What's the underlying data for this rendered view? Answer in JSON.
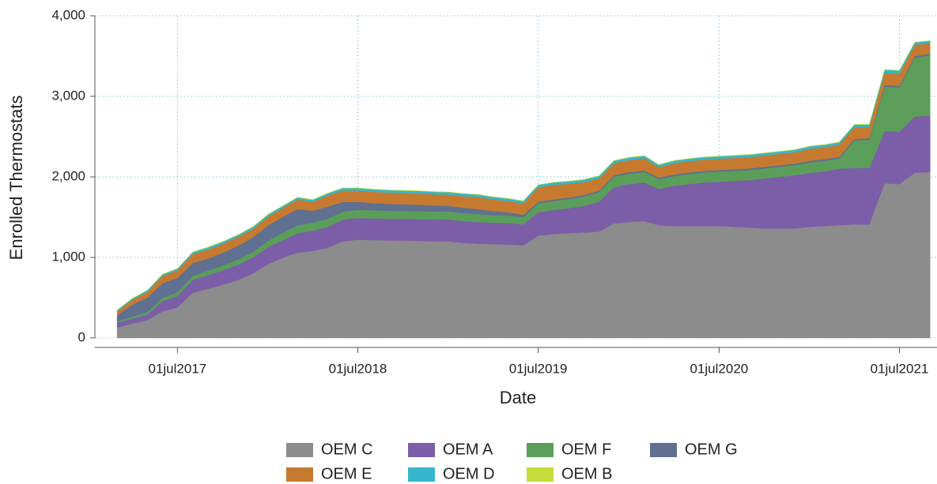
{
  "chart_data": {
    "type": "stacked-area",
    "x_label": "Date",
    "y_label": "Enrolled Thermostats",
    "x": [
      "2017-03-01",
      "2017-04-01",
      "2017-05-01",
      "2017-06-01",
      "2017-07-01",
      "2017-08-01",
      "2017-09-01",
      "2017-10-01",
      "2017-11-01",
      "2017-12-01",
      "2018-01-01",
      "2018-02-01",
      "2018-03-01",
      "2018-04-01",
      "2018-05-01",
      "2018-06-01",
      "2018-07-01",
      "2018-08-01",
      "2018-09-01",
      "2018-10-01",
      "2018-11-01",
      "2018-12-01",
      "2019-01-01",
      "2019-02-01",
      "2019-03-01",
      "2019-04-01",
      "2019-05-01",
      "2019-06-01",
      "2019-07-01",
      "2019-08-01",
      "2019-09-01",
      "2019-10-01",
      "2019-11-01",
      "2019-12-01",
      "2020-01-01",
      "2020-02-01",
      "2020-03-01",
      "2020-04-01",
      "2020-05-01",
      "2020-06-01",
      "2020-07-01",
      "2020-08-01",
      "2020-09-01",
      "2020-10-01",
      "2020-11-01",
      "2020-12-01",
      "2021-01-01",
      "2021-02-01",
      "2021-03-01",
      "2021-04-01",
      "2021-05-01",
      "2021-06-01",
      "2021-07-01",
      "2021-08-01",
      "2021-09-01"
    ],
    "series": [
      {
        "name": "OEM C",
        "color": "#8c8c8c",
        "values": [
          130,
          180,
          220,
          330,
          380,
          560,
          610,
          660,
          720,
          800,
          920,
          1000,
          1060,
          1080,
          1120,
          1200,
          1220,
          1215,
          1210,
          1210,
          1205,
          1200,
          1200,
          1180,
          1170,
          1165,
          1160,
          1150,
          1270,
          1290,
          1300,
          1310,
          1320,
          1420,
          1440,
          1450,
          1400,
          1390,
          1390,
          1390,
          1390,
          1380,
          1370,
          1360,
          1360,
          1360,
          1380,
          1390,
          1400,
          1410,
          1410,
          1920,
          1910,
          2050,
          2060
        ]
      },
      {
        "name": "OEM A",
        "color": "#7b5ea7",
        "values": [
          60,
          60,
          70,
          130,
          140,
          160,
          170,
          180,
          190,
          200,
          210,
          220,
          240,
          250,
          260,
          270,
          270,
          270,
          270,
          270,
          270,
          270,
          270,
          270,
          270,
          265,
          265,
          260,
          290,
          300,
          310,
          330,
          370,
          450,
          470,
          480,
          450,
          500,
          520,
          540,
          550,
          570,
          590,
          620,
          640,
          660,
          670,
          680,
          700,
          700,
          700,
          650,
          650,
          700,
          700
        ]
      },
      {
        "name": "OEM F",
        "color": "#5a9e5a",
        "values": [
          20,
          25,
          30,
          40,
          45,
          50,
          55,
          60,
          65,
          70,
          80,
          90,
          100,
          100,
          100,
          100,
          100,
          100,
          100,
          100,
          100,
          100,
          100,
          100,
          100,
          95,
          95,
          90,
          110,
          110,
          115,
          115,
          120,
          130,
          130,
          130,
          120,
          120,
          125,
          125,
          125,
          125,
          125,
          125,
          125,
          125,
          130,
          130,
          130,
          340,
          350,
          550,
          550,
          730,
          750
        ]
      },
      {
        "name": "OEM G",
        "color": "#5f7090",
        "values": [
          70,
          150,
          180,
          180,
          180,
          160,
          150,
          160,
          170,
          180,
          190,
          200,
          200,
          150,
          150,
          120,
          100,
          90,
          85,
          80,
          80,
          75,
          70,
          65,
          60,
          50,
          40,
          30,
          20,
          20,
          20,
          20,
          20,
          20,
          20,
          20,
          20,
          20,
          20,
          20,
          20,
          20,
          20,
          20,
          20,
          20,
          20,
          20,
          20,
          20,
          20,
          20,
          20,
          20,
          20
        ]
      },
      {
        "name": "OEM E",
        "color": "#c67a30",
        "values": [
          50,
          60,
          70,
          90,
          95,
          110,
          115,
          110,
          110,
          105,
          110,
          110,
          120,
          110,
          140,
          140,
          140,
          140,
          140,
          140,
          140,
          140,
          140,
          145,
          150,
          145,
          140,
          140,
          180,
          180,
          170,
          160,
          150,
          150,
          150,
          150,
          130,
          140,
          140,
          140,
          140,
          140,
          140,
          140,
          140,
          140,
          150,
          150,
          150,
          150,
          140,
          150,
          150,
          140,
          130
        ]
      },
      {
        "name": "OEM D",
        "color": "#35b6cc",
        "values": [
          15,
          15,
          20,
          20,
          20,
          25,
          25,
          25,
          25,
          25,
          25,
          25,
          25,
          25,
          25,
          30,
          30,
          30,
          30,
          30,
          30,
          30,
          30,
          30,
          30,
          30,
          30,
          30,
          30,
          30,
          30,
          30,
          30,
          30,
          30,
          30,
          30,
          30,
          30,
          30,
          30,
          30,
          30,
          30,
          30,
          30,
          30,
          30,
          30,
          30,
          30,
          40,
          40,
          30,
          30
        ]
      },
      {
        "name": "OEM B",
        "color": "#c5dc3a",
        "values": [
          3,
          3,
          3,
          3,
          3,
          3,
          3,
          3,
          3,
          3,
          3,
          3,
          3,
          3,
          3,
          3,
          3,
          3,
          3,
          3,
          3,
          3,
          3,
          3,
          3,
          3,
          3,
          3,
          3,
          3,
          3,
          3,
          3,
          3,
          3,
          3,
          3,
          3,
          3,
          3,
          3,
          3,
          3,
          3,
          3,
          3,
          3,
          3,
          3,
          3,
          3,
          3,
          3,
          3,
          3
        ]
      }
    ],
    "xlim": [
      "2017-01-15",
      "2021-09-15"
    ],
    "xticks": [
      {
        "value": "2017-07-01",
        "label": "01jul2017"
      },
      {
        "value": "2018-07-01",
        "label": "01jul2018"
      },
      {
        "value": "2019-07-01",
        "label": "01jul2019"
      },
      {
        "value": "2020-07-01",
        "label": "01jul2020"
      },
      {
        "value": "2021-07-01",
        "label": "01jul2021"
      }
    ],
    "ylim": [
      0,
      4000
    ],
    "yticks": [
      0,
      {
        "value": 1000,
        "label": "1,000"
      },
      {
        "value": 2000,
        "label": "2,000"
      },
      {
        "value": 3000,
        "label": "3,000"
      },
      {
        "value": 4000,
        "label": "4,000"
      }
    ],
    "grid": true
  }
}
